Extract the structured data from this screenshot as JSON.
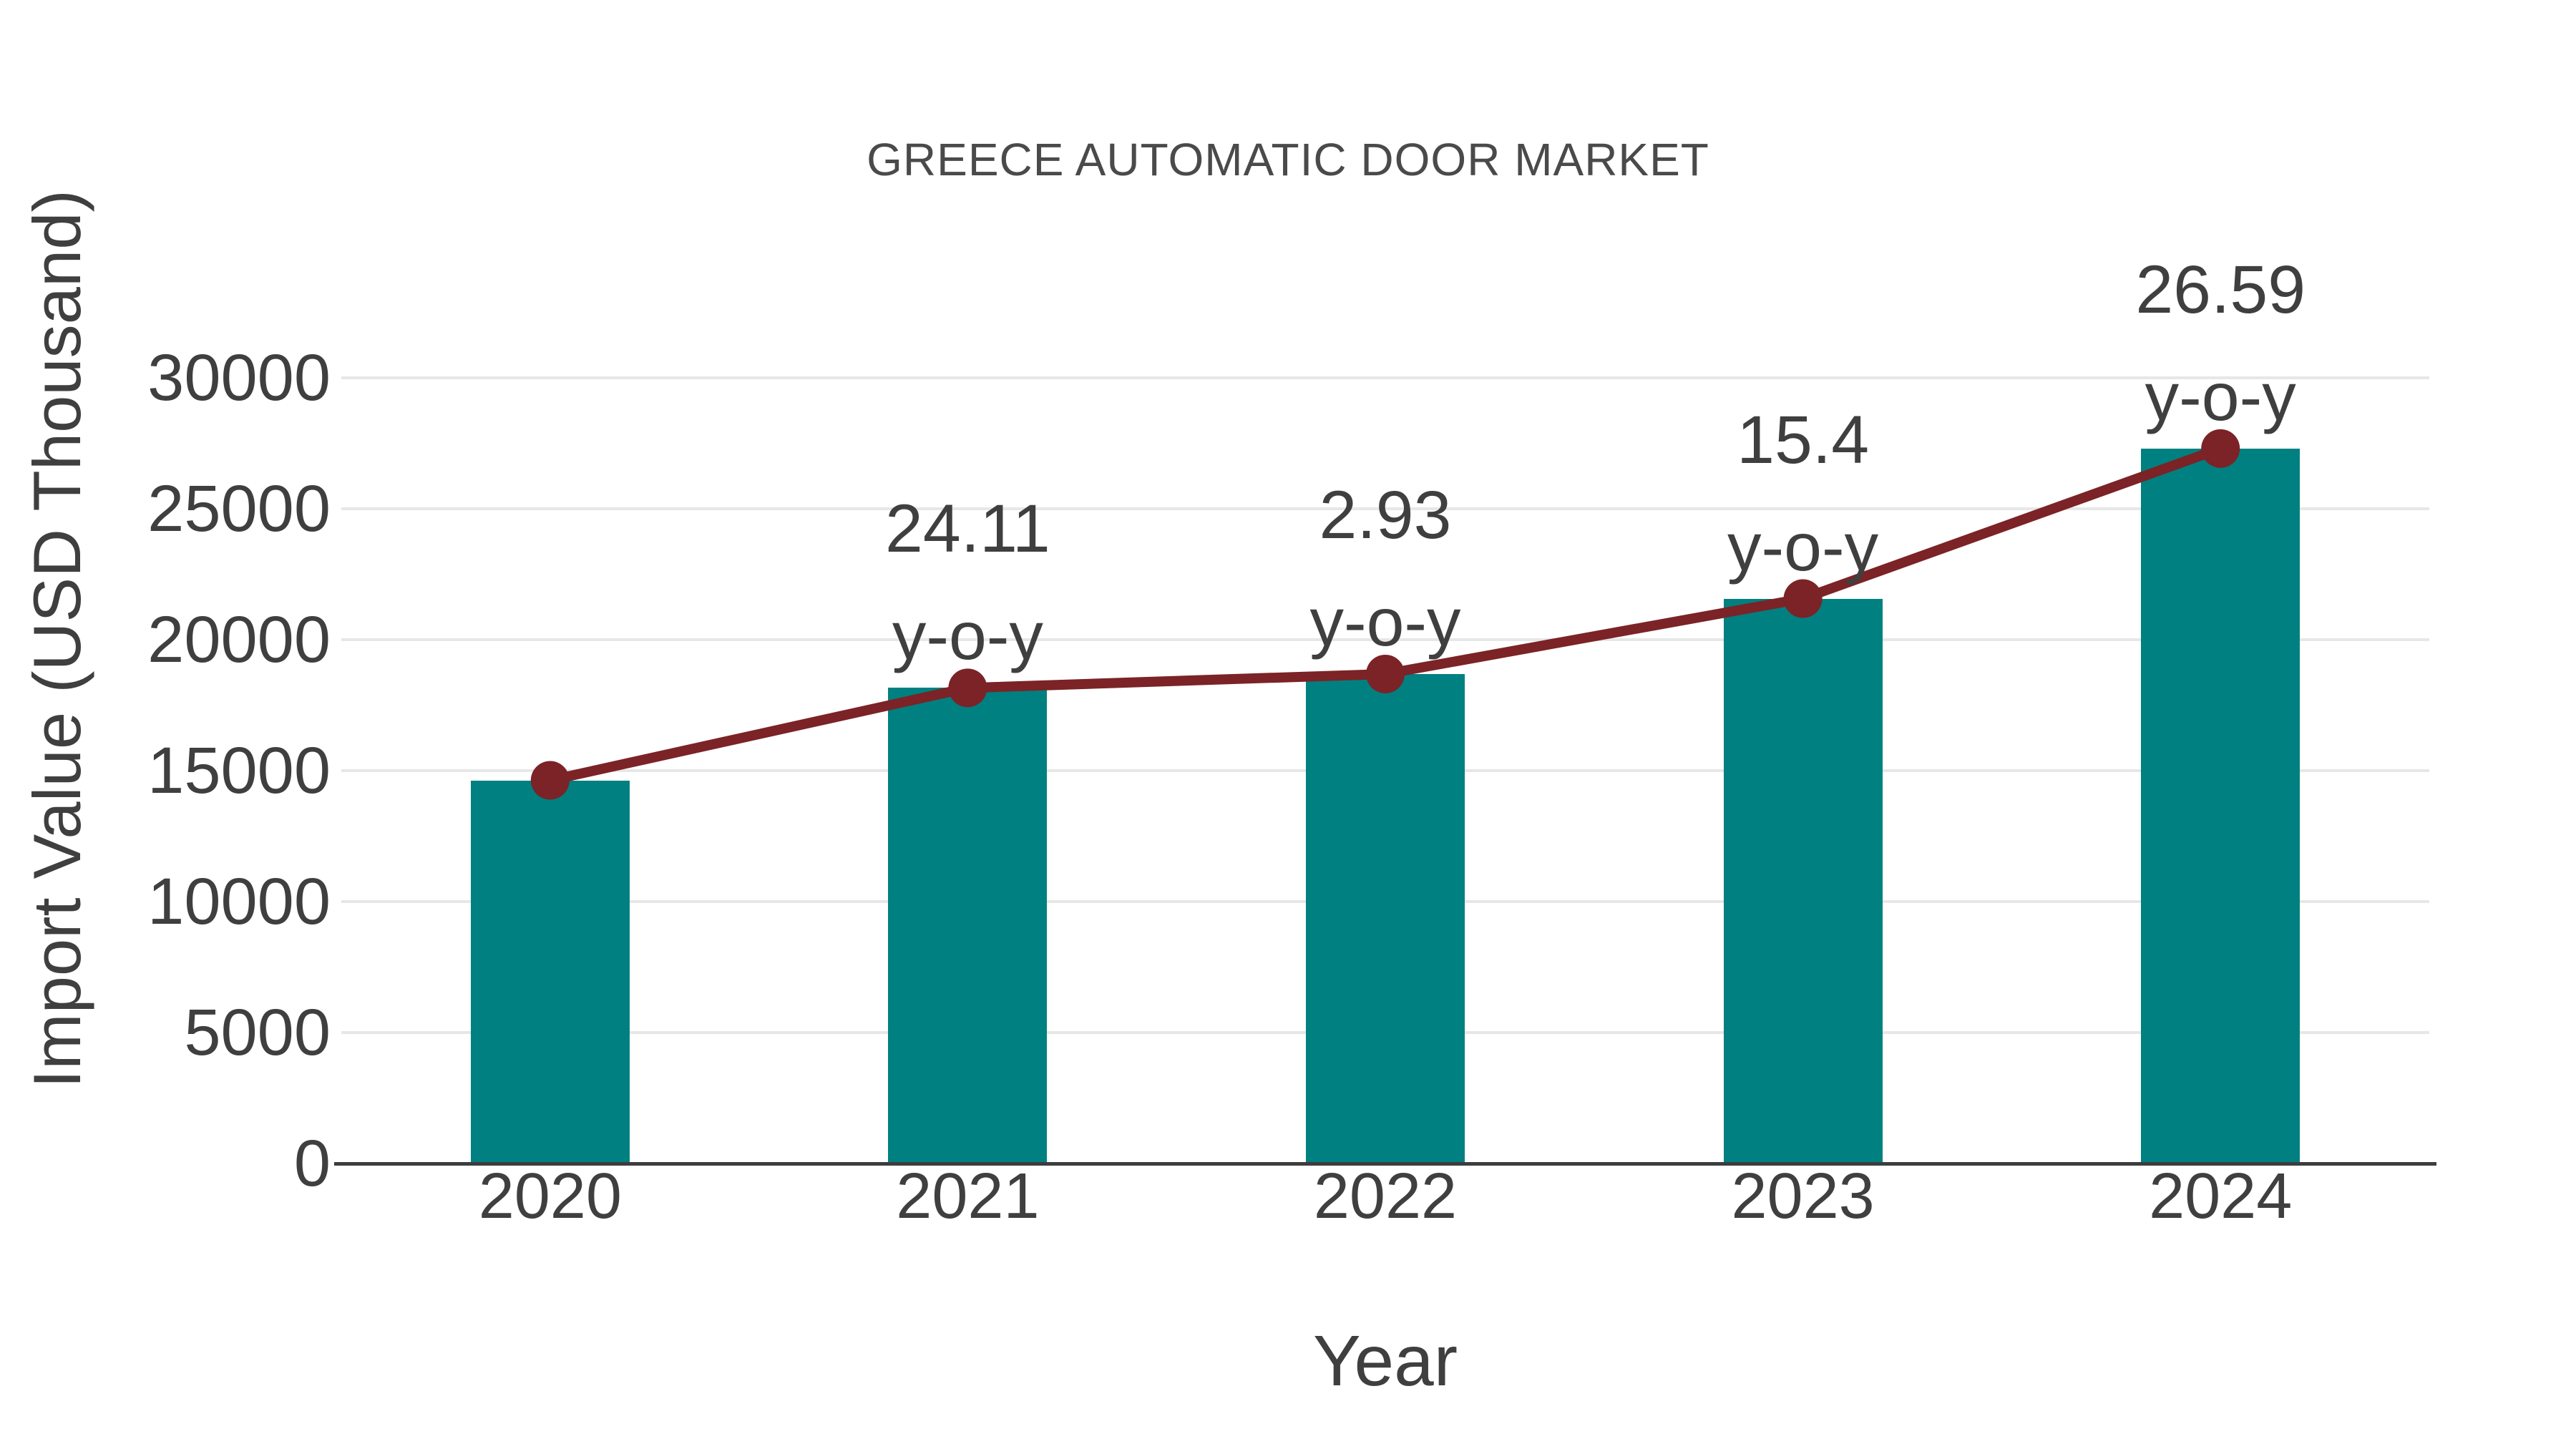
{
  "title": "GREECE AUTOMATIC DOOR MARKET",
  "chart_data": {
    "type": "bar",
    "title": "GREECE AUTOMATIC DOOR MARKET",
    "xlabel": "Year",
    "ylabel": "Import Value (USD Thousand)",
    "categories": [
      "2020",
      "2021",
      "2022",
      "2023",
      "2024"
    ],
    "series": [
      {
        "name": "Import Value (USD Thousand)",
        "type": "bar",
        "color": "#008080",
        "values": [
          14630,
          18160,
          18690,
          21570,
          27300
        ]
      },
      {
        "name": "Import Value trend line",
        "type": "line",
        "color": "#7b2326",
        "values": [
          14630,
          18160,
          18690,
          21570,
          27300
        ]
      }
    ],
    "annotations": [
      {
        "category": "2021",
        "value": "24.11",
        "suffix": "y-o-y"
      },
      {
        "category": "2022",
        "value": "2.93",
        "suffix": "y-o-y"
      },
      {
        "category": "2023",
        "value": "15.4",
        "suffix": "y-o-y"
      },
      {
        "category": "2024",
        "value": "26.59",
        "suffix": "y-o-y"
      }
    ],
    "ylim": [
      0,
      30000
    ],
    "yticks": [
      0,
      5000,
      10000,
      15000,
      20000,
      25000,
      30000
    ],
    "grid": true,
    "legend": false
  },
  "colors": {
    "bar": "#008080",
    "line": "#7b2326",
    "marker": "#7b2326",
    "text": "#3f3f3f",
    "title_text": "#4a4a4a",
    "grid": "#e7e7e7",
    "axis": "#3d3d3d",
    "background": "#ffffff"
  }
}
